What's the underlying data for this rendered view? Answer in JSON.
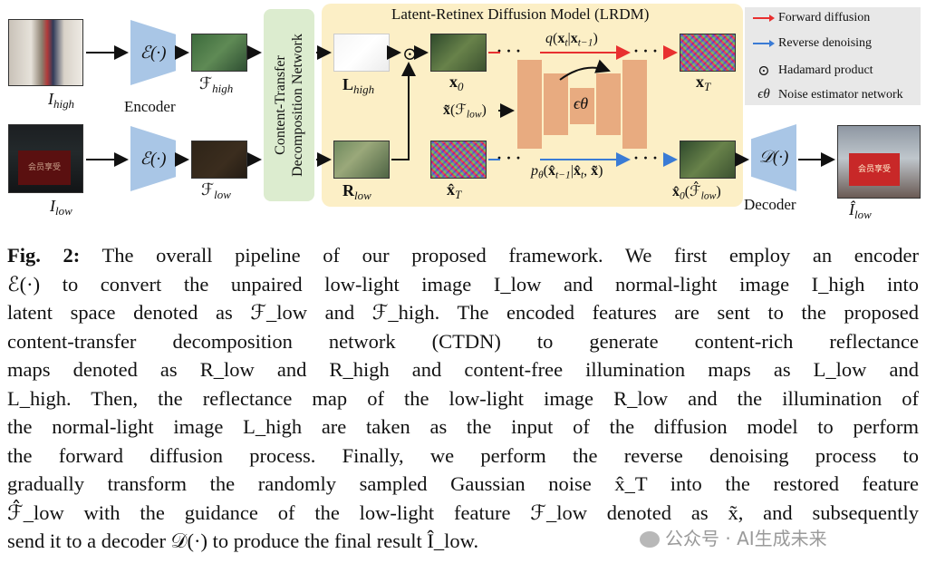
{
  "figure": {
    "lrdm_title": "Latent-Retinex Diffusion Model (LRDM)",
    "ctdn_label_line1": "Content-Transfer",
    "ctdn_label_line2": "Decomposition Network",
    "encoder_symbol": "ℰ(·)",
    "encoder_label": "Encoder",
    "decoder_symbol": "𝒟(·)",
    "decoder_label": "Decoder",
    "eps_symbol": "ϵθ",
    "dots": "· · ·",
    "hadamard_symbol": "⊙",
    "low_sign_text": "会员享受",
    "out_sign_text": "会员享受"
  },
  "legend": {
    "forward": "Forward diffusion",
    "reverse": "Reverse denoising",
    "hadamard": "Hadamard product",
    "noise_est": "Noise estimator network",
    "colors": {
      "forward": "#e83030",
      "reverse": "#3a7bd5"
    }
  },
  "caption": {
    "fig_label": "Fig. 2:",
    "lines": [
      "The overall pipeline of our proposed framework. We first employ an encoder",
      "ℰ(·) to convert the unpaired low-light image I_low and normal-light image I_high into",
      "latent space denoted as ℱ_low and ℱ_high. The encoded features are sent to the proposed",
      "content-transfer decomposition network (CTDN) to generate content-rich reflectance",
      "maps denoted as R_low and R_high and content-free illumination maps as L_low and",
      "L_high. Then, the reflectance map of the low-light image R_low and the illumination of",
      "the normal-light image L_high are taken as the input of the diffusion model to perform",
      "the forward diffusion process. Finally, we perform the reverse denoising process to",
      "gradually transform the randomly sampled Gaussian noise x̂_T into the restored feature",
      "ℱ̂_low with the guidance of the low-light feature ℱ_low denoted as x̃, and subsequently",
      "send it to a decoder 𝒟(·) to produce the final result Î_low."
    ]
  },
  "watermark": "公众号 · AI生成未来"
}
